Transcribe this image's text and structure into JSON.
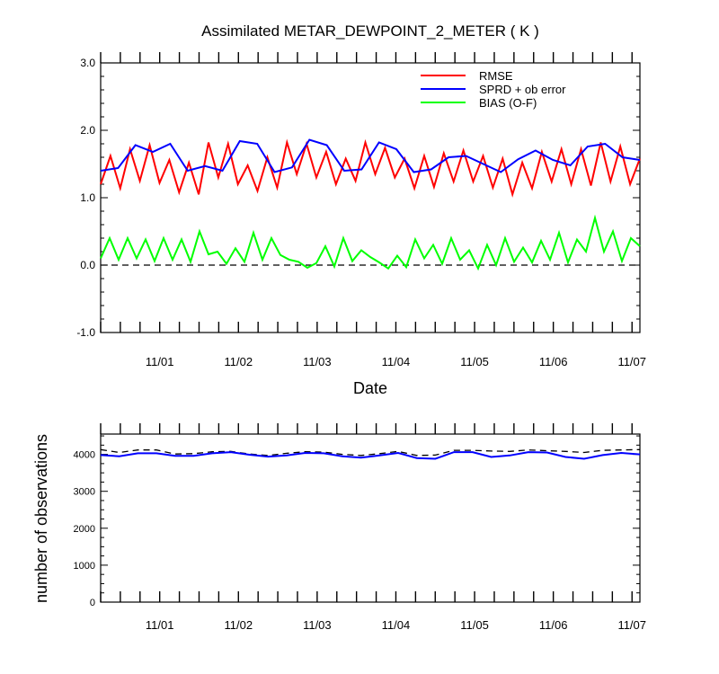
{
  "chart_data": [
    {
      "type": "line",
      "title": "Assimilated METAR_DEWPOINT_2_METER ( K )",
      "xlabel": "Date",
      "ylabel": "",
      "ylim": [
        -1.0,
        3.0
      ],
      "xlim_days": [
        -0.75,
        6.1
      ],
      "yticks": [
        "3.0",
        "2.0",
        "1.0",
        "0.0",
        "-1.0"
      ],
      "xticks": [
        "11/01",
        "11/02",
        "11/03",
        "11/04",
        "11/05",
        "11/06",
        "11/07"
      ],
      "legend_position": "top-right",
      "zero_line": "dashed",
      "series": [
        {
          "name": "RMSE",
          "color": "#ff0000",
          "values": [
            1.2,
            1.62,
            1.14,
            1.72,
            1.25,
            1.78,
            1.22,
            1.56,
            1.08,
            1.52,
            1.05,
            1.82,
            1.3,
            1.8,
            1.2,
            1.48,
            1.1,
            1.6,
            1.15,
            1.82,
            1.35,
            1.8,
            1.3,
            1.68,
            1.2,
            1.58,
            1.25,
            1.82,
            1.35,
            1.74,
            1.3,
            1.58,
            1.14,
            1.62,
            1.16,
            1.66,
            1.24,
            1.7,
            1.24,
            1.62,
            1.15,
            1.58,
            1.05,
            1.52,
            1.14,
            1.68,
            1.24,
            1.72,
            1.2,
            1.72,
            1.18,
            1.82,
            1.24,
            1.76,
            1.2,
            1.58
          ]
        },
        {
          "name": "SPRD + ob error",
          "color": "#0000ff",
          "values": [
            1.4,
            1.44,
            1.78,
            1.68,
            1.8,
            1.4,
            1.47,
            1.4,
            1.84,
            1.8,
            1.38,
            1.45,
            1.86,
            1.78,
            1.4,
            1.42,
            1.82,
            1.72,
            1.38,
            1.42,
            1.6,
            1.62,
            1.5,
            1.38,
            1.57,
            1.7,
            1.56,
            1.48,
            1.76,
            1.8,
            1.6,
            1.56
          ]
        },
        {
          "name": "BIAS (O-F)",
          "color": "#00ff00",
          "values": [
            0.1,
            0.4,
            0.08,
            0.4,
            0.1,
            0.38,
            0.06,
            0.4,
            0.08,
            0.38,
            0.05,
            0.5,
            0.16,
            0.2,
            0.02,
            0.25,
            0.05,
            0.48,
            0.08,
            0.4,
            0.15,
            0.08,
            0.05,
            -0.04,
            0.03,
            0.28,
            -0.02,
            0.4,
            0.06,
            0.22,
            0.12,
            0.04,
            -0.05,
            0.14,
            -0.03,
            0.38,
            0.1,
            0.3,
            0.02,
            0.4,
            0.08,
            0.22,
            -0.05,
            0.3,
            0.0,
            0.4,
            0.05,
            0.26,
            0.04,
            0.36,
            0.08,
            0.48,
            0.04,
            0.38,
            0.2,
            0.7,
            0.2,
            0.5,
            0.06,
            0.4,
            0.28
          ]
        }
      ]
    },
    {
      "type": "line",
      "title": "",
      "xlabel": "",
      "ylabel": "number of observations",
      "ylim": [
        0,
        4550
      ],
      "xlim_days": [
        -0.75,
        6.1
      ],
      "yticks": [
        "4000",
        "3000",
        "2000",
        "1000",
        "0"
      ],
      "xticks": [
        "11/01",
        "11/02",
        "11/03",
        "11/04",
        "11/05",
        "11/06",
        "11/07"
      ],
      "series": [
        {
          "name": "",
          "style": "dashed",
          "color": "#000000",
          "values": [
            4130,
            4050,
            4120,
            4120,
            4010,
            4020,
            4070,
            4080,
            4010,
            3970,
            4030,
            4070,
            4060,
            4000,
            3970,
            4020,
            4080,
            3970,
            3980,
            4110,
            4110,
            4090,
            4080,
            4120,
            4100,
            4080,
            4050,
            4110,
            4120,
            4130
          ]
        },
        {
          "name": "",
          "style": "solid",
          "color": "#0000ff",
          "values": [
            3980,
            3950,
            4030,
            4030,
            3960,
            3960,
            4030,
            4060,
            3990,
            3940,
            3970,
            4040,
            4030,
            3950,
            3910,
            3970,
            4040,
            3900,
            3880,
            4060,
            4060,
            3930,
            3970,
            4060,
            4050,
            3930,
            3880,
            3980,
            4040,
            4000
          ]
        }
      ]
    }
  ]
}
